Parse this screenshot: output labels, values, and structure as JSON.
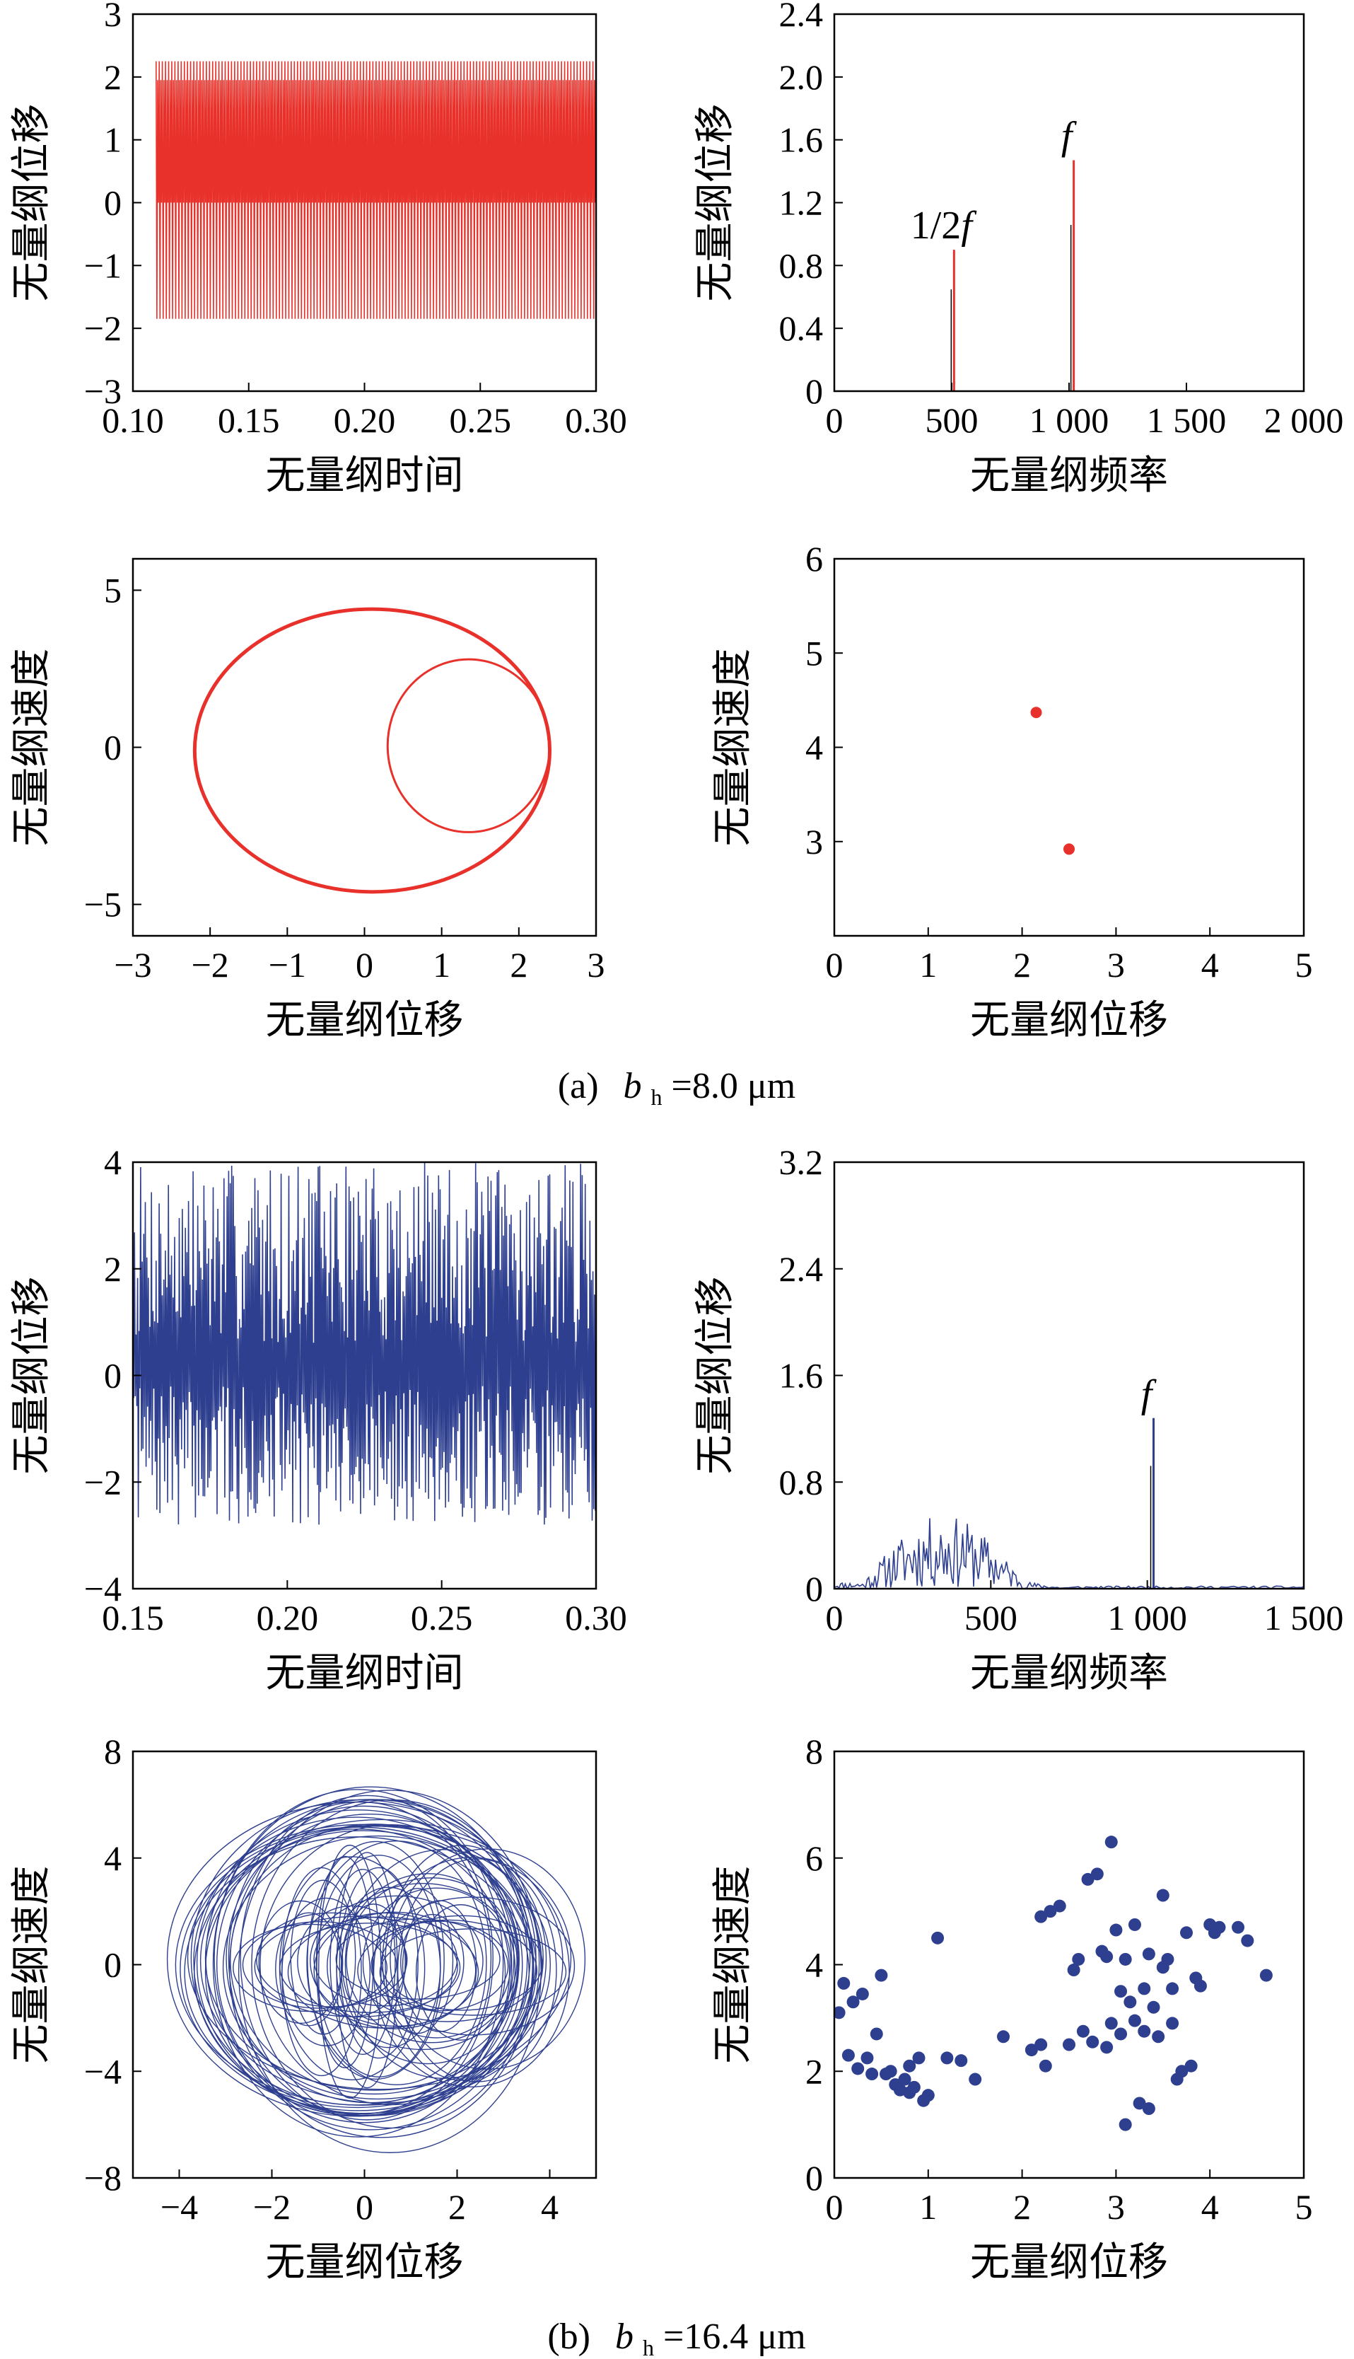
{
  "figure": {
    "groups": [
      {
        "caption_prefix": "(a)",
        "caption_var": "b",
        "caption_sub": "h",
        "caption_value": "=8.0 μm"
      },
      {
        "caption_prefix": "(b)",
        "caption_var": "b",
        "caption_sub": "h",
        "caption_value": "=16.4 μm"
      }
    ]
  },
  "chart_data": [
    {
      "id": "a1",
      "type": "line",
      "color": "#e8312a",
      "xlabel": "无量纲时间",
      "ylabel": "无量纲位移",
      "xlim": [
        0.1,
        0.3
      ],
      "ylim": [
        -3,
        3
      ],
      "xticks": [
        0.1,
        0.15,
        0.2,
        0.25,
        0.3
      ],
      "xtick_labels": [
        "0.10",
        "0.15",
        "0.20",
        "0.25",
        "0.30"
      ],
      "yticks": [
        -3,
        -2,
        -1,
        0,
        1,
        2,
        3
      ],
      "ytick_labels": [
        "−3",
        "−2",
        "−1",
        "0",
        "1",
        "2",
        "3"
      ],
      "grid": false,
      "signal": {
        "x_start": 0.11,
        "x_end": 0.3,
        "cycles": 140,
        "amplitude_max": 2.25,
        "amplitude_min": -1.85,
        "inner_max": 1.95,
        "inner_min": 0.0
      }
    },
    {
      "id": "a2",
      "type": "bar",
      "color": "#e8312a",
      "xlabel": "无量纲频率",
      "ylabel": "无量纲位移",
      "xlim": [
        0,
        2000
      ],
      "ylim": [
        0,
        2.4
      ],
      "xticks": [
        0,
        500,
        1000,
        1500,
        2000
      ],
      "xtick_labels": [
        "0",
        "500",
        "1 000",
        "1 500",
        "2 000"
      ],
      "yticks": [
        0,
        0.4,
        0.8,
        1.2,
        1.6,
        2.0,
        2.4
      ],
      "ytick_labels": [
        "0",
        "0.4",
        "0.8",
        "1.2",
        "1.6",
        "2.0",
        "2.4"
      ],
      "grid": false,
      "peaks": [
        {
          "x": 510,
          "y": 0.9,
          "label_num": "1/2",
          "label_var": "f"
        },
        {
          "x": 1020,
          "y": 1.47,
          "label_num": "",
          "label_var": "f"
        }
      ]
    },
    {
      "id": "a3",
      "type": "line",
      "color": "#e8312a",
      "xlabel": "无量纲位移",
      "ylabel": "无量纲速度",
      "xlim": [
        -3,
        3
      ],
      "ylim": [
        -6,
        6
      ],
      "xticks": [
        -3,
        -2,
        -1,
        0,
        1,
        2,
        3
      ],
      "xtick_labels": [
        "−3",
        "−2",
        "−1",
        "0",
        "1",
        "2",
        "3"
      ],
      "yticks": [
        -5,
        0,
        5
      ],
      "ytick_labels": [
        "−5",
        "0",
        "5"
      ],
      "grid": false,
      "orbits": [
        {
          "cx": 0.1,
          "cy": -0.1,
          "rx": 2.3,
          "ry": 4.5
        },
        {
          "cx": 1.35,
          "cy": 0.05,
          "rx": 1.05,
          "ry": 2.75
        }
      ]
    },
    {
      "id": "a4",
      "type": "scatter",
      "color": "#e8312a",
      "xlabel": "无量纲位移",
      "ylabel": "无量纲速度",
      "xlim": [
        0,
        5
      ],
      "ylim": [
        2,
        6
      ],
      "xticks": [
        0,
        1,
        2,
        3,
        4,
        5
      ],
      "xtick_labels": [
        "0",
        "1",
        "2",
        "3",
        "4",
        "5"
      ],
      "yticks": [
        3,
        4,
        5,
        6
      ],
      "ytick_labels": [
        "3",
        "4",
        "5",
        "6"
      ],
      "grid": false,
      "points": [
        [
          2.15,
          4.37
        ],
        [
          2.5,
          2.92
        ]
      ]
    },
    {
      "id": "b1",
      "type": "line",
      "color": "#2e3f8f",
      "xlabel": "无量纲时间",
      "ylabel": "无量纲位移",
      "xlim": [
        0.15,
        0.3
      ],
      "ylim": [
        -4,
        4
      ],
      "xticks": [
        0.15,
        0.2,
        0.25,
        0.3
      ],
      "xtick_labels": [
        "0.15",
        "0.20",
        "0.25",
        "0.30"
      ],
      "yticks": [
        -4,
        -2,
        0,
        2,
        4
      ],
      "ytick_labels": [
        "−4",
        "−2",
        "0",
        "2",
        "4"
      ],
      "grid": false,
      "signal": {
        "x_start": 0.15,
        "x_end": 0.3,
        "samples": 600,
        "min": -2.8,
        "max": 4.0
      }
    },
    {
      "id": "b2",
      "type": "line",
      "color": "#2e3f8f",
      "xlabel": "无量纲频率",
      "ylabel": "无量纲位移",
      "xlim": [
        0,
        1500
      ],
      "ylim": [
        0,
        3.2
      ],
      "xticks": [
        0,
        500,
        1000,
        1500
      ],
      "xtick_labels": [
        "0",
        "500",
        "1 000",
        "1 500"
      ],
      "yticks": [
        0,
        0.8,
        1.6,
        2.4,
        3.2
      ],
      "ytick_labels": [
        "0",
        "0.8",
        "1.6",
        "2.4",
        "3.2"
      ],
      "grid": false,
      "broadband": {
        "x_start": 0,
        "x_end": 750,
        "max": 0.55
      },
      "peaks": [
        {
          "x": 1020,
          "y": 1.28,
          "label_num": "",
          "label_var": "f"
        }
      ]
    },
    {
      "id": "b3",
      "type": "line",
      "color": "#2e3f8f",
      "xlabel": "无量纲位移",
      "ylabel": "无量纲速度",
      "xlim": [
        -5,
        5
      ],
      "ylim": [
        -8,
        8
      ],
      "xticks": [
        -4,
        -2,
        0,
        2,
        4
      ],
      "xtick_labels": [
        "−4",
        "−2",
        "0",
        "2",
        "4"
      ],
      "yticks": [
        -8,
        -4,
        0,
        4,
        8
      ],
      "ytick_labels": [
        "−8",
        "−4",
        "0",
        "4",
        "8"
      ],
      "grid": false,
      "orbit_band": {
        "x_min": -4.3,
        "x_max": 4.5,
        "y_min": -7.0,
        "y_max": 6.8,
        "count": 70
      }
    },
    {
      "id": "b4",
      "type": "scatter",
      "color": "#2e3f8f",
      "xlabel": "无量纲位移",
      "ylabel": "无量纲速度",
      "xlim": [
        0,
        5
      ],
      "ylim": [
        0,
        8
      ],
      "xticks": [
        0,
        1,
        2,
        3,
        4,
        5
      ],
      "xtick_labels": [
        "0",
        "1",
        "2",
        "3",
        "4",
        "5"
      ],
      "yticks": [
        0,
        2,
        4,
        6,
        8
      ],
      "ytick_labels": [
        "0",
        "2",
        "4",
        "6",
        "8"
      ],
      "grid": false,
      "points": [
        [
          0.05,
          3.1
        ],
        [
          0.1,
          3.65
        ],
        [
          0.15,
          2.3
        ],
        [
          0.2,
          3.3
        ],
        [
          0.25,
          2.05
        ],
        [
          0.3,
          3.45
        ],
        [
          0.35,
          2.25
        ],
        [
          0.4,
          1.95
        ],
        [
          0.45,
          2.7
        ],
        [
          0.5,
          3.8
        ],
        [
          0.55,
          1.95
        ],
        [
          0.6,
          2.0
        ],
        [
          0.65,
          1.75
        ],
        [
          0.7,
          1.65
        ],
        [
          0.75,
          1.85
        ],
        [
          0.8,
          2.1
        ],
        [
          0.85,
          1.7
        ],
        [
          0.9,
          2.25
        ],
        [
          0.95,
          1.45
        ],
        [
          1.0,
          1.55
        ],
        [
          1.1,
          4.5
        ],
        [
          1.2,
          2.25
        ],
        [
          1.35,
          2.2
        ],
        [
          1.5,
          1.85
        ],
        [
          1.8,
          2.65
        ],
        [
          2.1,
          2.4
        ],
        [
          2.2,
          2.5
        ],
        [
          2.25,
          2.1
        ],
        [
          2.2,
          4.9
        ],
        [
          2.3,
          5.0
        ],
        [
          2.4,
          5.1
        ],
        [
          2.5,
          2.5
        ],
        [
          2.55,
          3.9
        ],
        [
          2.6,
          4.1
        ],
        [
          2.65,
          2.75
        ],
        [
          2.7,
          5.6
        ],
        [
          2.75,
          2.55
        ],
        [
          2.8,
          5.7
        ],
        [
          2.85,
          4.25
        ],
        [
          2.9,
          4.15
        ],
        [
          2.95,
          6.3
        ],
        [
          2.95,
          2.9
        ],
        [
          3.0,
          4.65
        ],
        [
          3.05,
          3.5
        ],
        [
          3.05,
          2.7
        ],
        [
          3.1,
          4.1
        ],
        [
          3.1,
          1.0
        ],
        [
          3.15,
          3.3
        ],
        [
          3.2,
          4.75
        ],
        [
          3.2,
          2.95
        ],
        [
          3.25,
          1.4
        ],
        [
          3.3,
          3.55
        ],
        [
          3.3,
          2.75
        ],
        [
          3.35,
          4.2
        ],
        [
          3.4,
          3.2
        ],
        [
          3.45,
          2.65
        ],
        [
          3.5,
          5.3
        ],
        [
          3.5,
          3.95
        ],
        [
          3.55,
          4.1
        ],
        [
          3.6,
          3.55
        ],
        [
          3.6,
          2.9
        ],
        [
          3.65,
          1.85
        ],
        [
          3.7,
          2.0
        ],
        [
          3.75,
          4.6
        ],
        [
          3.8,
          2.1
        ],
        [
          3.85,
          3.75
        ],
        [
          3.9,
          3.6
        ],
        [
          4.0,
          4.75
        ],
        [
          4.05,
          4.6
        ],
        [
          4.1,
          4.7
        ],
        [
          4.3,
          4.7
        ],
        [
          4.4,
          4.45
        ],
        [
          4.6,
          3.8
        ],
        [
          0.8,
          1.6
        ],
        [
          2.9,
          2.45
        ],
        [
          3.35,
          1.3
        ]
      ]
    }
  ]
}
